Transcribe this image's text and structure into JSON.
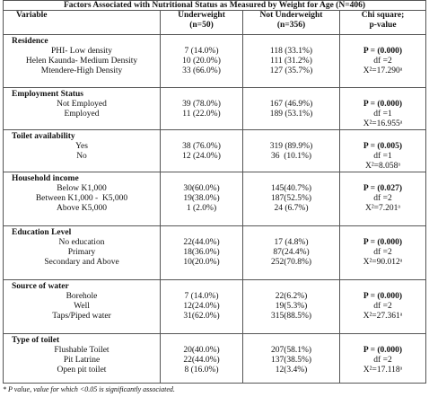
{
  "title": "Factors Associated with Nutritional Status as Measured by Weight for Age (N=406)",
  "header": [
    "Variable",
    "Underweight\n(n=50)",
    "Not Underweight\n(n=356)",
    "Chi square;\np-value"
  ],
  "sections": [
    {
      "heading": "Residence",
      "rows": [
        [
          "PHI- Low density",
          "7 (14.0%)",
          "118 (33.1%)"
        ],
        [
          "Helen Kaunda- Medium Density",
          "10 (20.0%)",
          "111 (31.2%)"
        ],
        [
          "Mtendere-High Density",
          "33 (66.0%)",
          "127 (35.7%)"
        ]
      ],
      "stats": [
        "P = (0.000)",
        "df =2",
        "X²=17.290ᵃ"
      ]
    },
    {
      "heading": "Employment Status",
      "rows": [
        [
          "Not Employed",
          "39 (78.0%)",
          "167 (46.9%)"
        ],
        [
          "Employed",
          "11 (22.0%)",
          "189 (53.1%)"
        ]
      ],
      "stats": [
        "P = (0.000)",
        "df =1",
        "X²=16.955ᵃ"
      ]
    },
    {
      "heading": "Toilet availability",
      "rows": [
        [
          "Yes",
          "38 (76.0%)",
          "319 (89.9%)"
        ],
        [
          "No",
          "12 (24.0%)",
          "36  (10.1%)"
        ]
      ],
      "stats": [
        "P = (0.005)",
        "df =1",
        "X²=8.058ᵃ"
      ]
    },
    {
      "heading": "Household income",
      "rows": [
        [
          "Below K1,000",
          "30(60.0%)",
          "145(40.7%)"
        ],
        [
          "Between K1,000 -  K5,000",
          "19(38.0%)",
          "187(52.5%)"
        ],
        [
          "Above K5,000",
          "1 (2.0%)",
          "24 (6.7%)"
        ]
      ],
      "stats": [
        "P = (0.027)",
        "df =2",
        "X²=7.201ᵃ"
      ]
    },
    {
      "heading": "Education Level",
      "rows": [
        [
          "No education",
          "22(44.0%)",
          "17 (4.8%)"
        ],
        [
          "Primary",
          "18(36.0%)",
          "87(24.4%)"
        ],
        [
          "Secondary and Above",
          "10(20.0%)",
          "252(70.8%)"
        ]
      ],
      "stats": [
        "P = (0.000)",
        "df =2",
        "X²=90.012ᵃ"
      ]
    },
    {
      "heading": "Source of water",
      "rows": [
        [
          "Borehole",
          "7 (14.0%)",
          "22(6.2%)"
        ],
        [
          "Well",
          "12(24.0%)",
          "19(5.3%)"
        ],
        [
          "Taps/Piped water",
          "31(62.0%)",
          "315(88.5%)"
        ]
      ],
      "stats": [
        "P = (0.000)",
        "df =2",
        "X²=27.361ᵃ"
      ]
    },
    {
      "heading": "Type of toilet",
      "rows": [
        [
          "Flushable Toilet",
          "20(40.0%)",
          "207(58.1%)"
        ],
        [
          "Pit Latrine",
          "22(44.0%)",
          "137(38.5%)"
        ],
        [
          "Open pit toilet",
          "8 (16.0%)",
          "12(3.4%)"
        ]
      ],
      "stats": [
        "P = (0.000)",
        "df =2",
        "X²=17.118ᵃ"
      ]
    }
  ],
  "footnote": "* P value, value for which <0.05 is significantly associated."
}
